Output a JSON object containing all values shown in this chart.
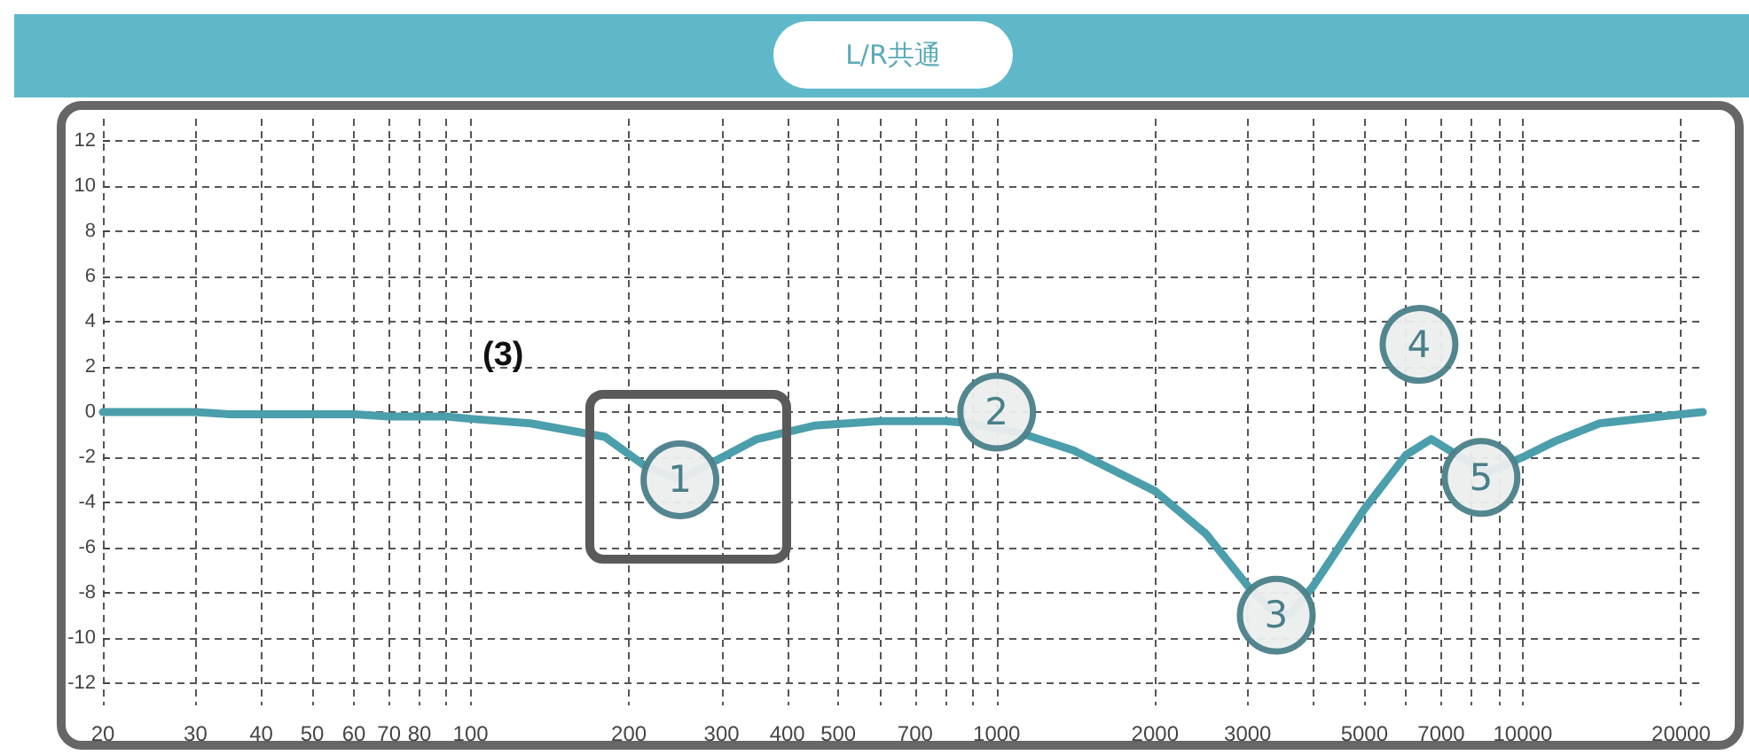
{
  "chart_data": {
    "type": "line",
    "title": "L/R共通",
    "annotations": [
      "(3)",
      {
        "text": "1",
        "x": 250,
        "y": -3
      },
      {
        "text": "2",
        "x": 1000,
        "y": 0
      },
      {
        "text": "3",
        "x": 3400,
        "y": -9
      },
      {
        "text": "4",
        "x": 6350,
        "y": 3
      },
      {
        "text": "5",
        "x": 8330,
        "y": -2.9
      }
    ],
    "log": "x",
    "grid": true,
    "xlim": [
      20,
      22000
    ],
    "xticks": [
      20,
      30,
      40,
      50,
      60,
      70,
      80,
      {
        "value": 90,
        "label": null
      },
      100,
      200,
      300,
      400,
      500,
      {
        "value": 600,
        "label": null
      },
      700,
      {
        "value": 800,
        "label": null
      },
      {
        "value": 900,
        "label": null
      },
      1000,
      2000,
      3000,
      {
        "value": 4000,
        "label": null
      },
      5000,
      {
        "value": 6000,
        "label": null
      },
      7000,
      {
        "value": 8000,
        "label": null
      },
      {
        "value": 9000,
        "label": null
      },
      10000,
      20000
    ],
    "ylim": [
      -13,
      13
    ],
    "yticks": [
      -12,
      -10,
      -8,
      -6,
      -4,
      -2,
      0,
      2,
      4,
      6,
      8,
      10,
      12
    ],
    "series": [
      {
        "color": "#4b9eab",
        "marker": "none",
        "line_style": "solid",
        "x": [
          20,
          30,
          35,
          60,
          70,
          90,
          100,
          130,
          180,
          215,
          250,
          290,
          350,
          450,
          600,
          800,
          900,
          1000,
          1100,
          1400,
          2000,
          2500,
          3000,
          3300,
          3600,
          4000,
          5000,
          6000,
          6700,
          7500,
          8500,
          10000,
          11500,
          14000,
          20000,
          22000
        ],
        "values": [
          0,
          0,
          -0.1,
          -0.1,
          -0.2,
          -0.2,
          -0.3,
          -0.5,
          -1.1,
          -2.4,
          -3,
          -2.2,
          -1.2,
          -0.6,
          -0.4,
          -0.4,
          -0.5,
          -0.75,
          -0.9,
          -1.7,
          -3.5,
          -5.4,
          -7.7,
          -8.7,
          -9,
          -7.7,
          -4.3,
          -1.9,
          -1.2,
          -1.9,
          -2.7,
          -2,
          -1.3,
          -0.5,
          -0.1,
          0
        ]
      },
      {
        "type": "scatter",
        "color": "#eceeee",
        "marker": "circle",
        "x": [
          250,
          1000,
          3400,
          6350,
          8330
        ],
        "values": [
          -3,
          0,
          -9,
          3,
          -2.9
        ]
      }
    ]
  }
}
